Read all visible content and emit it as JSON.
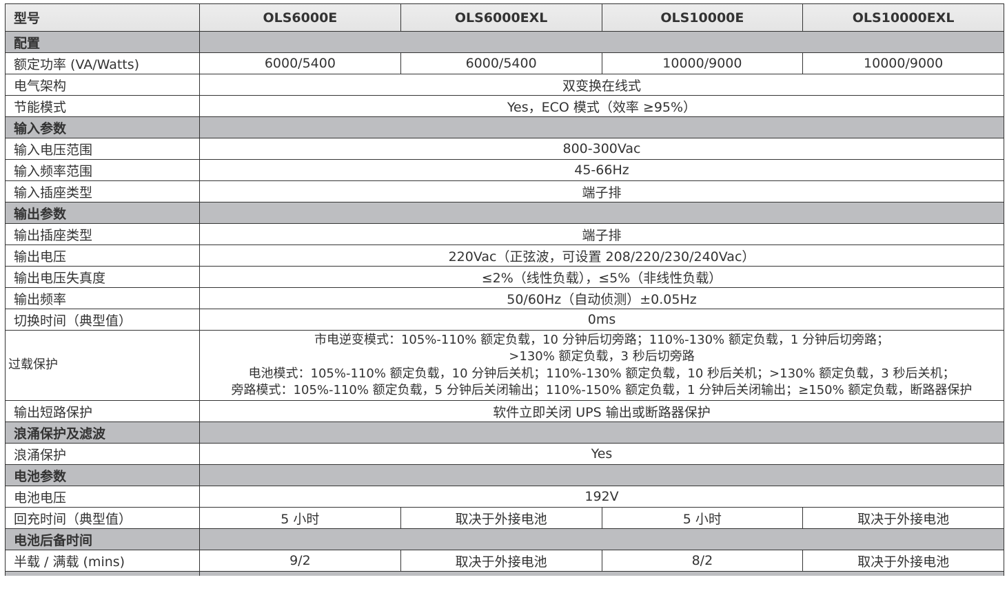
{
  "header": {
    "label": "型号",
    "models": [
      "OLS6000E",
      "OLS6000EXL",
      "OLS10000E",
      "OLS10000EXL"
    ]
  },
  "rows": [
    {
      "type": "section",
      "label": "配置"
    },
    {
      "type": "row",
      "label": "额定功率 (VA/Watts)",
      "values": [
        "6000/5400",
        "6000/5400",
        "10000/9000",
        "10000/9000"
      ]
    },
    {
      "type": "row",
      "label": "电气架构",
      "value": "双变换在线式"
    },
    {
      "type": "row",
      "label": "节能模式",
      "value": "Yes，ECO 模式（效率 ≥95%）"
    },
    {
      "type": "section",
      "label": "输入参数"
    },
    {
      "type": "row",
      "label": "输入电压范围",
      "value": "800-300Vac"
    },
    {
      "type": "row",
      "label": "输入频率范围",
      "value": "45-66Hz"
    },
    {
      "type": "row",
      "label": "输入插座类型",
      "value": "端子排"
    },
    {
      "type": "section",
      "label": "输出参数"
    },
    {
      "type": "row",
      "label": "输出插座类型",
      "value": "端子排"
    },
    {
      "type": "row",
      "label": "输出电压",
      "value": "220Vac（正弦波，可设置 208/220/230/240Vac）"
    },
    {
      "type": "row",
      "label": "输出电压失真度",
      "value": "≤2%（线性负载），≤5%（非线性负载）"
    },
    {
      "type": "row",
      "label": "输出频率",
      "value": "50/60Hz（自动侦测）±0.05Hz"
    },
    {
      "type": "row",
      "label": "切换时间（典型值）",
      "value": "0ms"
    },
    {
      "type": "multi",
      "label": "过载保护",
      "lines": [
        "市电逆变模式：105%-110% 额定负载，10 分钟后切旁路；110%-130% 额定负载，1 分钟后切旁路；",
        ">130% 额定负载，3 秒后切旁路",
        "电池模式：105%-110% 额定负载，10 分钟后关机；110%-130% 额定负载，10 秒后关机；>130% 额定负载，3 秒后关机；",
        "旁路模式：105%-110% 额定负载，5 分钟后关闭输出；110%-150% 额定负载，1 分钟后关闭输出；≥150% 额定负载，断路器保护"
      ]
    },
    {
      "type": "row",
      "label": "输出短路保护",
      "value": "软件立即关闭 UPS 输出或断路器保护"
    },
    {
      "type": "section",
      "label": "浪涌保护及滤波"
    },
    {
      "type": "row",
      "label": "浪涌保护",
      "value": "Yes"
    },
    {
      "type": "section",
      "label": "电池参数"
    },
    {
      "type": "row",
      "label": "电池电压",
      "value": "192V"
    },
    {
      "type": "row",
      "label": "回充时间（典型值）",
      "values": [
        "5 小时",
        "取决于外接电池",
        "5 小时",
        "取决于外接电池"
      ]
    },
    {
      "type": "section",
      "label": "电池后备时间"
    },
    {
      "type": "row",
      "label": "半载 / 满载 (mins)",
      "values": [
        "9/2",
        "取决于外接电池",
        "8/2",
        "取决于外接电池"
      ]
    }
  ]
}
